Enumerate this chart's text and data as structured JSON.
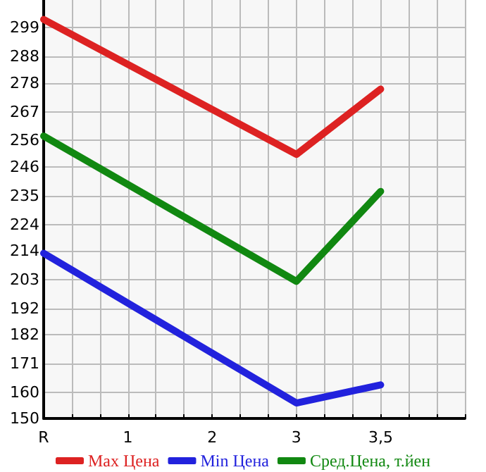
{
  "chart_data": {
    "type": "line",
    "categories": [
      "R",
      "1",
      "2",
      "3",
      "3,5",
      null
    ],
    "series": [
      {
        "name": "Max Цена",
        "color": "#dd2222",
        "values": [
          302.2,
          null,
          null,
          250.7,
          275.6,
          null
        ]
      },
      {
        "name": "Min Цена",
        "color": "#2222dd",
        "values": [
          213.0,
          null,
          null,
          155.9,
          162.8,
          null
        ]
      },
      {
        "name": "Сред.Цена, т.йен",
        "color": "#118811",
        "values": [
          257.7,
          null,
          null,
          202.3,
          236.6,
          null
        ]
      }
    ],
    "ylim": [
      150,
      309.6
    ],
    "yticks": [
      150,
      160,
      171,
      182,
      192,
      203,
      214,
      224,
      235,
      246,
      256,
      267,
      278,
      288,
      299
    ],
    "grid": true,
    "legend": "bottom",
    "marker": "none",
    "line_style": "solid"
  }
}
